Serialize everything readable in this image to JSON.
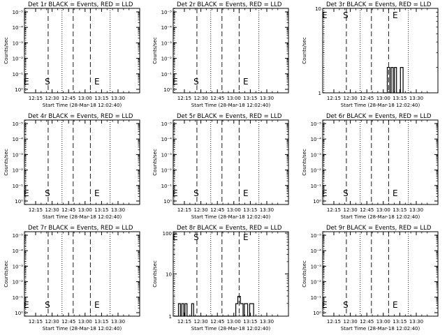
{
  "chart_data": [
    {
      "type": "line",
      "title": "Det 1r BLACK = Events, RED = LLD",
      "xlabel": "Start Time (28-Mar-18 12:02:40)",
      "ylabel": "Counts/sec",
      "ytick_labels": [
        "10⁰",
        "10⁻¹",
        "10⁻²",
        "10⁻³",
        "10⁻⁴",
        "10⁻⁵"
      ],
      "xtick_labels": [
        "12:15",
        "12:30",
        "12:45",
        "13:00",
        "13:15",
        "13:30"
      ],
      "markers": [
        "E",
        "S",
        "E"
      ],
      "series": []
    },
    {
      "type": "line",
      "title": "Det 2r BLACK = Events, RED = LLD",
      "xlabel": "Start Time (28-Mar-18 12:02:40)",
      "ylabel": "Counts/sec",
      "ytick_labels": [
        "10⁰",
        "10⁻¹",
        "10⁻²",
        "10⁻³",
        "10⁻⁴",
        "10⁻⁵"
      ],
      "xtick_labels": [
        "12:15",
        "12:30",
        "12:45",
        "13:00",
        "13:15",
        "13:30"
      ],
      "markers": [
        "E",
        "S",
        "E"
      ],
      "series": []
    },
    {
      "type": "line",
      "title": "Det 3r BLACK = Events, RED = LLD",
      "xlabel": "Start Time (28-Mar-18 12:02:40)",
      "ylabel": "Counts/sec",
      "ytick_labels": [
        "1",
        "10"
      ],
      "xtick_labels": [
        "12:15",
        "12:30",
        "12:45",
        "13:00",
        "13:15",
        "13:30"
      ],
      "markers": [
        "E",
        "S",
        "E"
      ],
      "series": [
        {
          "values": [
            [
              13.0,
              1
            ],
            [
              13.06,
              1
            ],
            [
              13.06,
              2
            ],
            [
              13.1,
              2
            ],
            [
              13.1,
              1
            ],
            [
              13.12,
              1
            ],
            [
              13.12,
              2
            ],
            [
              13.15,
              2
            ],
            [
              13.15,
              1
            ],
            [
              13.17,
              1
            ],
            [
              13.17,
              2
            ],
            [
              13.2,
              2
            ],
            [
              13.2,
              1
            ],
            [
              13.26,
              1
            ],
            [
              13.26,
              2
            ],
            [
              13.3,
              2
            ],
            [
              13.3,
              1
            ]
          ]
        }
      ]
    },
    {
      "type": "line",
      "title": "Det 4r BLACK = Events, RED = LLD",
      "xlabel": "Start Time (28-Mar-18 12:02:40)",
      "ylabel": "Counts/sec",
      "ytick_labels": [
        "10⁰",
        "10⁻¹",
        "10⁻²",
        "10⁻³",
        "10⁻⁴",
        "10⁻⁵"
      ],
      "xtick_labels": [
        "12:15",
        "12:30",
        "12:45",
        "13:00",
        "13:15",
        "13:30"
      ],
      "markers": [
        "E",
        "S",
        "E"
      ],
      "series": []
    },
    {
      "type": "line",
      "title": "Det 5r BLACK = Events, RED = LLD",
      "xlabel": "Start Time (28-Mar-18 12:02:40)",
      "ylabel": "Counts/sec",
      "ytick_labels": [
        "10⁰",
        "10⁻¹",
        "10⁻²",
        "10⁻³",
        "10⁻⁴",
        "10⁻⁵"
      ],
      "xtick_labels": [
        "12:15",
        "12:30",
        "12:45",
        "13:00",
        "13:15",
        "13:30"
      ],
      "markers": [
        "E",
        "S",
        "E"
      ],
      "series": []
    },
    {
      "type": "line",
      "title": "Det 6r BLACK = Events, RED = LLD",
      "xlabel": "Start Time (28-Mar-18 12:02:40)",
      "ylabel": "Counts/sec",
      "ytick_labels": [
        "10⁰",
        "10⁻¹",
        "10⁻²",
        "10⁻³",
        "10⁻⁴",
        "10⁻⁵"
      ],
      "xtick_labels": [
        "12:15",
        "12:30",
        "12:45",
        "13:00",
        "13:15",
        "13:30"
      ],
      "markers": [
        "E",
        "S",
        "E"
      ],
      "series": []
    },
    {
      "type": "line",
      "title": "Det 7r BLACK = Events, RED = LLD",
      "xlabel": "Start Time (28-Mar-18 12:02:40)",
      "ylabel": "Counts/sec",
      "ytick_labels": [
        "10⁰",
        "10⁻¹",
        "10⁻²",
        "10⁻³",
        "10⁻⁴",
        "10⁻⁵"
      ],
      "xtick_labels": [
        "12:15",
        "12:30",
        "12:45",
        "13:00",
        "13:15",
        "13:30"
      ],
      "markers": [
        "E",
        "S",
        "E"
      ],
      "series": []
    },
    {
      "type": "line",
      "title": "Det 8r BLACK = Events, RED = LLD",
      "xlabel": "Start Time (28-Mar-18 12:02:40)",
      "ylabel": "Counts/sec",
      "ytick_labels": [
        "1",
        "10",
        "100"
      ],
      "xtick_labels": [
        "12:15",
        "12:30",
        "12:45",
        "13:00",
        "13:15",
        "13:30"
      ],
      "markers": [
        "E",
        "S",
        "E"
      ],
      "series": [
        {
          "values": [
            [
              12.1,
              1
            ],
            [
              12.16,
              1
            ],
            [
              12.16,
              2
            ],
            [
              12.19,
              2
            ],
            [
              12.19,
              1
            ],
            [
              12.21,
              1
            ],
            [
              12.21,
              2
            ],
            [
              12.24,
              2
            ],
            [
              12.24,
              1
            ],
            [
              12.26,
              1
            ],
            [
              12.26,
              2
            ],
            [
              12.29,
              2
            ],
            [
              12.29,
              1
            ],
            [
              12.36,
              1
            ],
            [
              12.36,
              2
            ],
            [
              12.39,
              2
            ],
            [
              12.39,
              1
            ],
            [
              13.0,
              1
            ],
            [
              13.03,
              1
            ],
            [
              13.03,
              2
            ],
            [
              13.06,
              2
            ],
            [
              13.06,
              3
            ],
            [
              13.1,
              3
            ],
            [
              13.1,
              2
            ],
            [
              13.14,
              2
            ],
            [
              13.14,
              1
            ],
            [
              13.16,
              1
            ],
            [
              13.16,
              2
            ],
            [
              13.21,
              2
            ],
            [
              13.21,
              1
            ],
            [
              13.24,
              1
            ],
            [
              13.24,
              2
            ],
            [
              13.3,
              2
            ],
            [
              13.3,
              1
            ]
          ]
        }
      ]
    },
    {
      "type": "line",
      "title": "Det 9r BLACK = Events, RED = LLD",
      "xlabel": "Start Time (28-Mar-18 12:02:40)",
      "ylabel": "Counts/sec",
      "ytick_labels": [
        "10⁰",
        "10⁻¹",
        "10⁻²",
        "10⁻³",
        "10⁻⁴",
        "10⁻⁵"
      ],
      "xtick_labels": [
        "12:15",
        "12:30",
        "12:45",
        "13:00",
        "13:15",
        "13:30"
      ],
      "markers": [
        "E",
        "S",
        "E"
      ],
      "series": []
    }
  ]
}
